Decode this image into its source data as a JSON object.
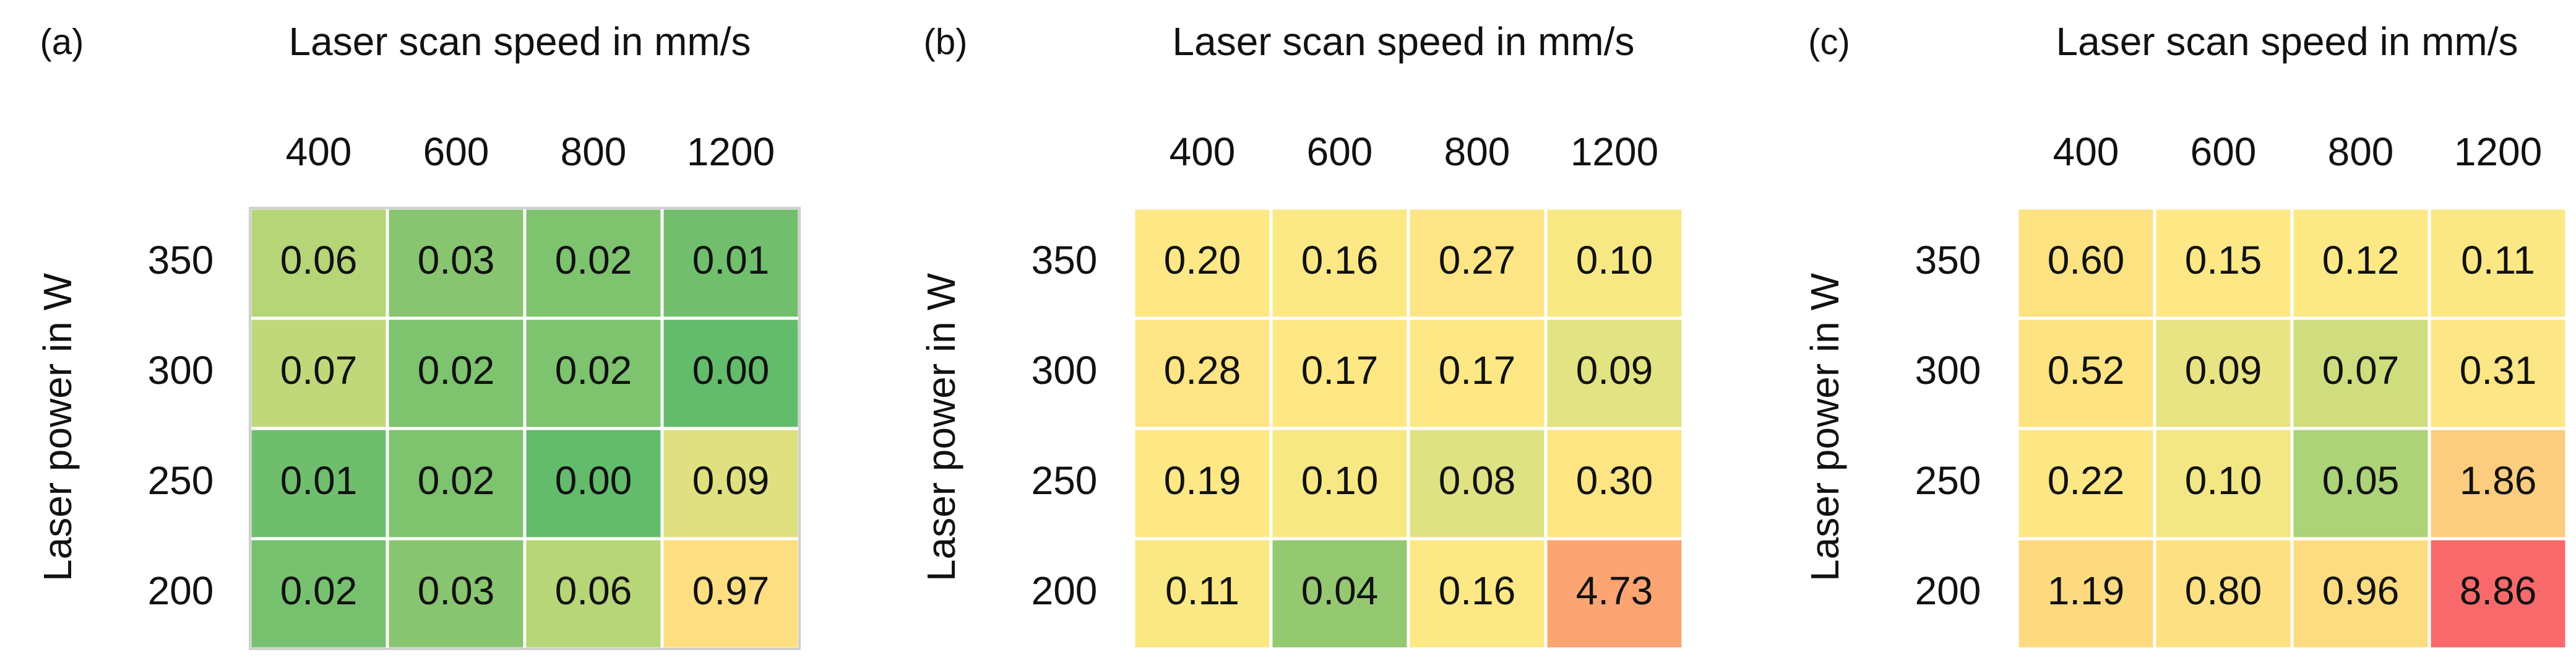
{
  "chart_data": [
    {
      "type": "heatmap",
      "panel_label": "(a)",
      "xlabel": "Laser scan speed in mm/s",
      "ylabel": "Laser power in W",
      "x_categories": [
        "400",
        "600",
        "800",
        "1200"
      ],
      "y_categories": [
        "350",
        "300",
        "250",
        "200"
      ],
      "values": [
        [
          0.06,
          0.03,
          0.02,
          0.01
        ],
        [
          0.07,
          0.02,
          0.02,
          0.0
        ],
        [
          0.01,
          0.02,
          0.0,
          0.09
        ],
        [
          0.02,
          0.03,
          0.06,
          0.97
        ]
      ],
      "colors": [
        [
          "#b5d576",
          "#88c570",
          "#7ec36e",
          "#71bf6d"
        ],
        [
          "#c0d87a",
          "#7ec36e",
          "#7ec36e",
          "#63bb6c"
        ],
        [
          "#6fbe6d",
          "#7ec36e",
          "#63bb6c",
          "#dfe181"
        ],
        [
          "#77c16e",
          "#88c570",
          "#b7d677",
          "#fddf82"
        ]
      ],
      "outline": true
    },
    {
      "type": "heatmap",
      "panel_label": "(b)",
      "xlabel": "Laser scan speed in mm/s",
      "ylabel": "Laser power in W",
      "x_categories": [
        "400",
        "600",
        "800",
        "1200"
      ],
      "y_categories": [
        "350",
        "300",
        "250",
        "200"
      ],
      "values": [
        [
          0.2,
          0.16,
          0.27,
          0.1
        ],
        [
          0.28,
          0.17,
          0.17,
          0.09
        ],
        [
          0.19,
          0.1,
          0.08,
          0.3
        ],
        [
          0.11,
          0.04,
          0.16,
          4.73
        ]
      ],
      "colors": [
        [
          "#fde885",
          "#fce885",
          "#fde585",
          "#f8e884"
        ],
        [
          "#fde585",
          "#fde885",
          "#fde885",
          "#e2e382"
        ],
        [
          "#fde885",
          "#f8e884",
          "#dfe282",
          "#fde584"
        ],
        [
          "#fae884",
          "#94c971",
          "#fce885",
          "#fca573"
        ]
      ],
      "outline": false
    },
    {
      "type": "heatmap",
      "panel_label": "(c)",
      "xlabel": "Laser scan speed in mm/s",
      "ylabel": "Laser power in W",
      "x_categories": [
        "400",
        "600",
        "800",
        "1200"
      ],
      "y_categories": [
        "350",
        "300",
        "250",
        "200"
      ],
      "values": [
        [
          0.6,
          0.15,
          0.12,
          0.11
        ],
        [
          0.52,
          0.09,
          0.07,
          0.31
        ],
        [
          0.22,
          0.1,
          0.05,
          1.86
        ],
        [
          1.19,
          0.8,
          0.96,
          8.86
        ]
      ],
      "colors": [
        [
          "#fde282",
          "#fde885",
          "#fce885",
          "#fbe884"
        ],
        [
          "#fde382",
          "#e8e483",
          "#cfdd7f",
          "#fde685"
        ],
        [
          "#fde785",
          "#f2e784",
          "#acd378",
          "#fccd7f"
        ],
        [
          "#fdd980",
          "#fde082",
          "#fddc81",
          "#f8696b"
        ]
      ],
      "outline": false
    }
  ]
}
